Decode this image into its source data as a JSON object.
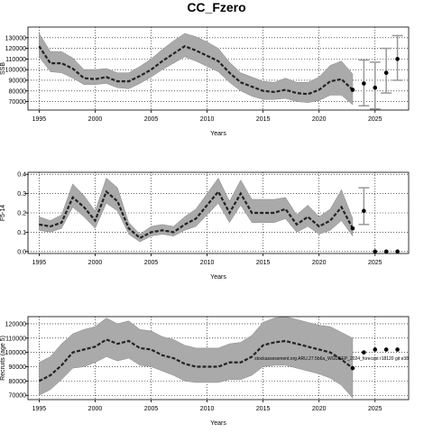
{
  "figure_title": "CC_Fzero",
  "watermark": "stockassessment.org ARU.27.5b6a_WGDEEP_2024_forecast r18120 git e38",
  "chart_data": [
    {
      "type": "line",
      "xlabel": "Years",
      "ylabel": "SSB",
      "xlim": [
        1994,
        2028
      ],
      "ylim": [
        62000,
        140000
      ],
      "x_ticks": [
        1995,
        2000,
        2005,
        2010,
        2015,
        2020,
        2025
      ],
      "y_ticks": [
        70000,
        80000,
        90000,
        100000,
        110000,
        120000,
        130000
      ],
      "grid": true,
      "years": [
        1995,
        1996,
        1997,
        1998,
        1999,
        2000,
        2001,
        2002,
        2003,
        2004,
        2005,
        2006,
        2007,
        2008,
        2009,
        2010,
        2011,
        2012,
        2013,
        2014,
        2015,
        2016,
        2017,
        2018,
        2019,
        2020,
        2021,
        2022,
        2023
      ],
      "estimate": [
        122000,
        106000,
        106000,
        101000,
        92000,
        91000,
        93000,
        89000,
        89000,
        94000,
        100000,
        108000,
        115000,
        122000,
        118000,
        113000,
        108000,
        97000,
        88000,
        84000,
        80000,
        79000,
        81000,
        78000,
        77000,
        81000,
        89000,
        91000,
        81000
      ],
      "lower": [
        112000,
        98000,
        97000,
        92000,
        86000,
        86000,
        87000,
        83000,
        82000,
        87000,
        93000,
        100000,
        106000,
        112000,
        108000,
        103000,
        98000,
        88000,
        80000,
        75000,
        72000,
        72000,
        73000,
        70000,
        69000,
        71000,
        76000,
        76000,
        67000
      ],
      "upper": [
        134000,
        117000,
        117000,
        111000,
        100000,
        100000,
        101000,
        97000,
        97000,
        103000,
        110000,
        119000,
        127000,
        134000,
        131000,
        126000,
        120000,
        107000,
        97000,
        93000,
        89000,
        88000,
        92000,
        88000,
        88000,
        93000,
        104000,
        108000,
        96000
      ],
      "forecast_years": [
        2024,
        2025,
        2026,
        2027
      ],
      "forecast_estimate": [
        87000,
        83000,
        97000,
        110000
      ],
      "forecast_lower": [
        66000,
        63000,
        78000,
        90000
      ],
      "forecast_upper": [
        109000,
        107000,
        120000,
        132000
      ]
    },
    {
      "type": "line",
      "xlabel": "Years",
      "ylabel": "F5-14",
      "xlim": [
        1994,
        2028
      ],
      "ylim": [
        -0.01,
        0.41
      ],
      "x_ticks": [
        1995,
        2000,
        2005,
        2010,
        2015,
        2020,
        2025
      ],
      "y_ticks": [
        0.0,
        0.1,
        0.2,
        0.3,
        0.4
      ],
      "grid": true,
      "years": [
        1995,
        1996,
        1997,
        1998,
        1999,
        2000,
        2001,
        2002,
        2003,
        2004,
        2005,
        2006,
        2007,
        2008,
        2009,
        2010,
        2011,
        2012,
        2013,
        2014,
        2015,
        2016,
        2017,
        2018,
        2019,
        2020,
        2021,
        2022,
        2023
      ],
      "estimate": [
        0.14,
        0.13,
        0.15,
        0.28,
        0.23,
        0.16,
        0.31,
        0.26,
        0.12,
        0.07,
        0.1,
        0.11,
        0.1,
        0.14,
        0.17,
        0.24,
        0.31,
        0.2,
        0.3,
        0.2,
        0.2,
        0.2,
        0.22,
        0.14,
        0.18,
        0.13,
        0.16,
        0.23,
        0.12
      ],
      "lower": [
        0.11,
        0.1,
        0.12,
        0.23,
        0.18,
        0.12,
        0.25,
        0.21,
        0.09,
        0.05,
        0.08,
        0.09,
        0.08,
        0.11,
        0.13,
        0.19,
        0.25,
        0.15,
        0.24,
        0.15,
        0.15,
        0.15,
        0.17,
        0.1,
        0.13,
        0.09,
        0.11,
        0.16,
        0.08
      ],
      "upper": [
        0.18,
        0.16,
        0.19,
        0.35,
        0.29,
        0.21,
        0.38,
        0.33,
        0.15,
        0.09,
        0.13,
        0.14,
        0.13,
        0.18,
        0.22,
        0.3,
        0.38,
        0.26,
        0.37,
        0.27,
        0.27,
        0.27,
        0.28,
        0.19,
        0.24,
        0.18,
        0.22,
        0.32,
        0.17
      ],
      "forecast_years": [
        2024,
        2025,
        2026,
        2027
      ],
      "forecast_estimate": [
        0.21,
        0.0,
        0.0,
        0.0
      ],
      "forecast_lower": [
        0.14,
        0.0,
        0.0,
        0.0
      ],
      "forecast_upper": [
        0.33,
        0.0,
        0.0,
        0.0
      ]
    },
    {
      "type": "line",
      "xlabel": "Years",
      "ylabel": "Recruits (age 5)",
      "xlim": [
        1994,
        2028
      ],
      "ylim": [
        67000,
        125000
      ],
      "x_ticks": [
        1995,
        2000,
        2005,
        2010,
        2015,
        2020,
        2025
      ],
      "y_ticks": [
        70000,
        80000,
        90000,
        100000,
        110000,
        120000
      ],
      "grid": true,
      "years": [
        1995,
        1996,
        1997,
        1998,
        1999,
        2000,
        2001,
        2002,
        2003,
        2004,
        2005,
        2006,
        2007,
        2008,
        2009,
        2010,
        2011,
        2012,
        2013,
        2014,
        2015,
        2016,
        2017,
        2018,
        2019,
        2020,
        2021,
        2022,
        2023
      ],
      "estimate": [
        80000,
        84000,
        91000,
        100000,
        102000,
        104000,
        109000,
        106000,
        108000,
        103000,
        102000,
        98000,
        96000,
        92000,
        90000,
        90000,
        90000,
        93000,
        93000,
        97000,
        105000,
        107000,
        108000,
        106000,
        104000,
        102000,
        100000,
        95000,
        89000
      ],
      "lower": [
        70000,
        74000,
        81000,
        89000,
        90000,
        93000,
        97000,
        94000,
        96000,
        91000,
        90000,
        87000,
        84000,
        80000,
        79000,
        79000,
        79000,
        81000,
        81000,
        84000,
        90000,
        91000,
        91000,
        89000,
        87000,
        85000,
        82000,
        77000,
        68000
      ],
      "upper": [
        93000,
        97000,
        106000,
        113000,
        116000,
        118000,
        124000,
        120000,
        122000,
        116000,
        115000,
        111000,
        109000,
        105000,
        103000,
        103000,
        103000,
        106000,
        107000,
        112000,
        121000,
        124000,
        125000,
        123000,
        121000,
        119000,
        118000,
        114000,
        110000
      ],
      "forecast_years": [
        2024,
        2025,
        2026,
        2027
      ],
      "forecast_estimate": [
        100000,
        102000,
        102000,
        102000
      ],
      "forecast_lower": [],
      "forecast_upper": []
    }
  ]
}
